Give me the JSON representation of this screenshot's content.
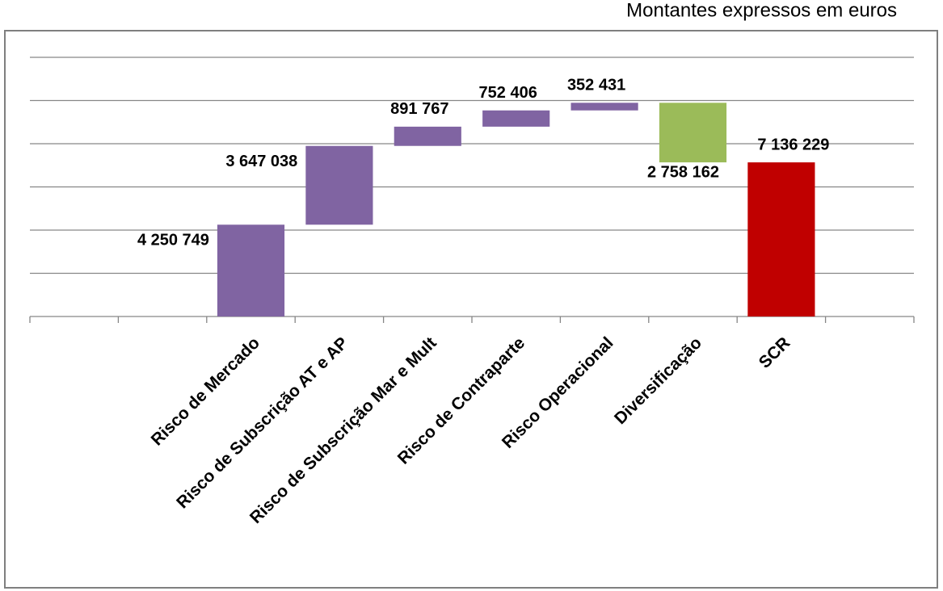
{
  "chart_data": {
    "type": "waterfall",
    "note": "Montantes expressos em euros",
    "categories": [
      null,
      null,
      "Risco de Mercado",
      "Risco de Subscrição AT e AP",
      "Risco de Subscrição Mar e Mult",
      "Risco de Contraparte",
      "Risco Operacional",
      "Diversificação",
      "SCR",
      null
    ],
    "values": [
      null,
      null,
      4250749,
      3647038,
      891767,
      752406,
      352431,
      -2758162,
      7136229,
      null
    ],
    "value_labels": [
      null,
      null,
      "4 250 749",
      "3 647 038",
      "891 767",
      "752 406",
      "352 431",
      "2 758 162",
      "7 136 229",
      null
    ],
    "total": "SCR",
    "colors": {
      "increase": "#8064a2",
      "decrease": "#9bbb59",
      "total": "#c00000"
    },
    "ylim": [
      0,
      12000000
    ],
    "yticks": [
      0,
      2000000,
      4000000,
      6000000,
      8000000,
      10000000,
      12000000
    ],
    "ytick_labels": false,
    "grid": true
  }
}
